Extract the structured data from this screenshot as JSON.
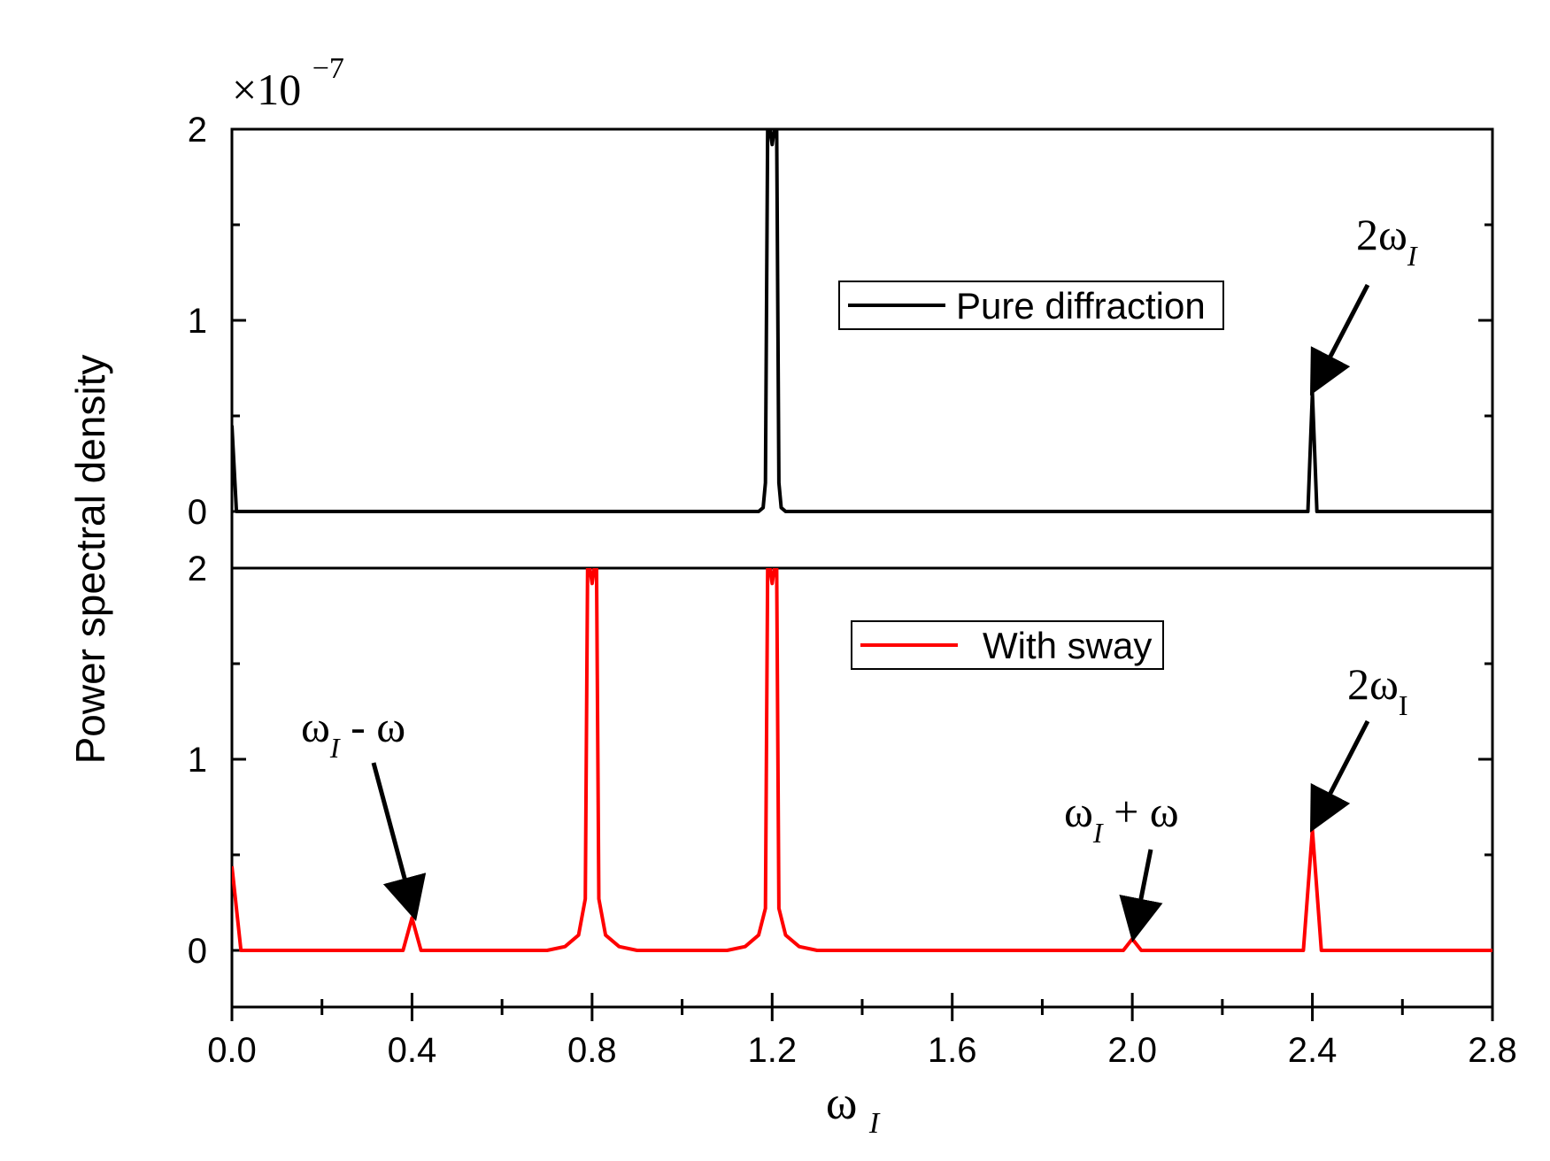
{
  "chart_data": {
    "type": "line",
    "scale_factor": {
      "base": "×10",
      "exponent": "−7"
    },
    "ylabel": "Power spectral density",
    "xlabel": {
      "main": "ω",
      "sub": "I"
    },
    "xlim": [
      0,
      2.8
    ],
    "xticks": [
      "0.0",
      "0.4",
      "0.8",
      "1.2",
      "1.6",
      "2.0",
      "2.4",
      "2.8"
    ],
    "panels": [
      {
        "id": "top",
        "ylim": [
          0,
          2
        ],
        "yticks": [
          "0",
          "1",
          "2"
        ],
        "legend": {
          "label": "Pure diffraction",
          "color": "#000000",
          "position": "center"
        },
        "series": [
          {
            "name": "Pure diffraction",
            "color": "#000000",
            "x": [
              0.0,
              0.01,
              1.17,
              1.18,
              1.185,
              1.19,
              1.195,
              1.2,
              1.205,
              1.21,
              1.215,
              1.22,
              1.23,
              2.38,
              2.39,
              2.4,
              2.41,
              2.42,
              2.8
            ],
            "y": [
              0.45,
              0.0,
              0.0,
              0.02,
              0.15,
              2.0,
              2.0,
              1.92,
              2.0,
              2.0,
              0.15,
              0.02,
              0.0,
              0.0,
              0.0,
              0.62,
              0.0,
              0.0,
              0.0
            ]
          }
        ],
        "annotations": [
          {
            "text": "2ω",
            "sub": "I",
            "x": 2.4,
            "y": 0.62
          }
        ]
      },
      {
        "id": "bottom",
        "ylim": [
          -0.3,
          2
        ],
        "yticks": [
          "0",
          "1",
          "2"
        ],
        "legend": {
          "label": "With sway",
          "color": "#ff0000",
          "position": "center"
        },
        "series": [
          {
            "name": "With sway",
            "color": "#ff0000",
            "x": [
              0.0,
              0.02,
              0.38,
              0.4,
              0.42,
              0.7,
              0.74,
              0.77,
              0.785,
              0.79,
              0.795,
              0.8,
              0.805,
              0.81,
              0.815,
              0.83,
              0.86,
              0.9,
              1.1,
              1.14,
              1.17,
              1.185,
              1.19,
              1.195,
              1.2,
              1.205,
              1.21,
              1.215,
              1.23,
              1.26,
              1.3,
              1.98,
              2.0,
              2.02,
              2.38,
              2.4,
              2.42,
              2.8
            ],
            "y": [
              0.44,
              0.0,
              0.0,
              0.17,
              0.0,
              0.0,
              0.02,
              0.08,
              0.27,
              2.0,
              2.0,
              1.92,
              2.0,
              2.0,
              0.27,
              0.08,
              0.02,
              0.0,
              0.0,
              0.02,
              0.08,
              0.22,
              2.0,
              2.0,
              1.92,
              2.0,
              2.0,
              0.22,
              0.08,
              0.02,
              0.0,
              0.0,
              0.06,
              0.0,
              0.0,
              0.63,
              0.0,
              0.0
            ]
          }
        ],
        "annotations": [
          {
            "text": "ω",
            "sub": "I",
            "tail": " - ω",
            "x": 0.4,
            "y": 0.17
          },
          {
            "text": "ω",
            "sub": "I",
            "tail": " + ω",
            "x": 2.0,
            "y": 0.06
          },
          {
            "text": "2ω",
            "sub": "I",
            "x": 2.4,
            "y": 0.63
          }
        ]
      }
    ]
  }
}
